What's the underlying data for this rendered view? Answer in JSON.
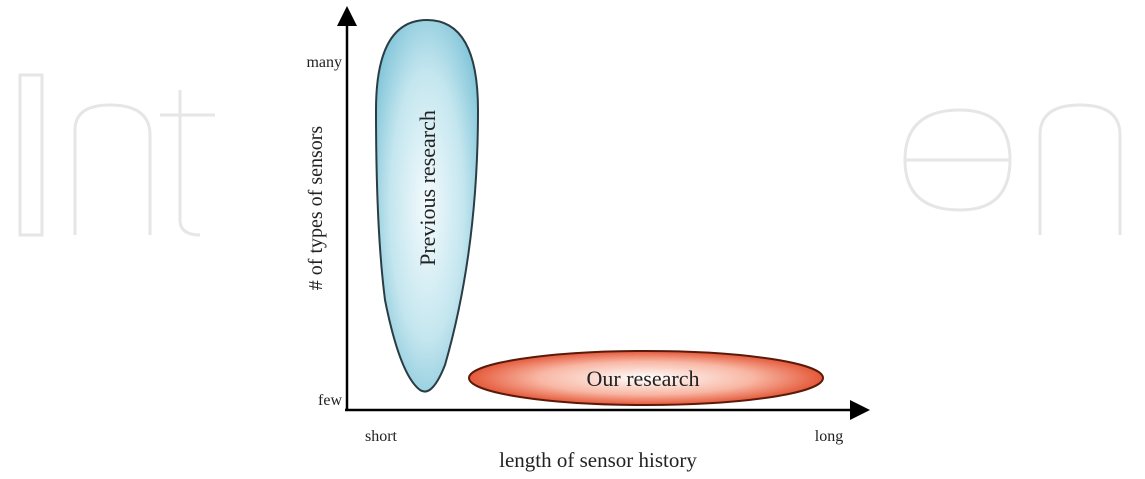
{
  "diagram": {
    "y_axis": {
      "label": "# of types of sensors",
      "high": "many",
      "low": "few"
    },
    "x_axis": {
      "label": "length of sensor history",
      "low": "short",
      "high": "long"
    },
    "regions": [
      {
        "label": "Previous research"
      },
      {
        "label": "Our research"
      }
    ]
  }
}
